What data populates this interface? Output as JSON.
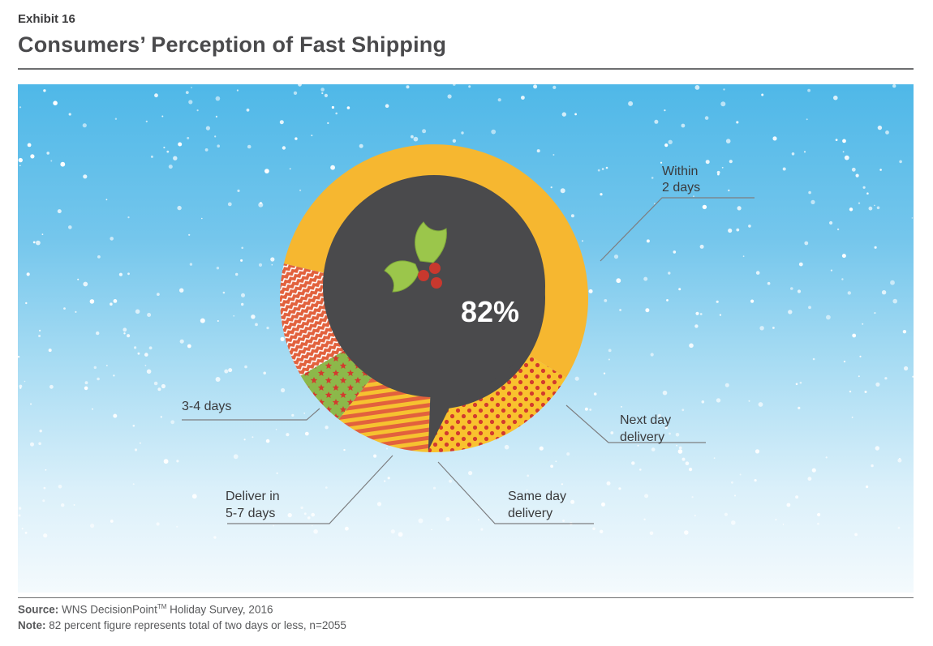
{
  "header": {
    "exhibit": "Exhibit 16",
    "title": "Consumers’ Perception of Fast Shipping"
  },
  "chart_data": {
    "type": "pie",
    "title": "Consumers’ Perception of Fast Shipping",
    "center_label": "82%",
    "categories": [
      "Within 2 days",
      "Next day delivery",
      "Same day delivery",
      "Deliver in 5-7 days",
      "3-4 days"
    ],
    "labels": [
      [
        "Within",
        "2 days"
      ],
      [
        "Next day",
        "delivery"
      ],
      [
        "Same day",
        "delivery"
      ],
      [
        "Deliver in",
        "5-7 days"
      ],
      [
        "3-4 days"
      ]
    ],
    "values": [
      55,
      17,
      10,
      6,
      12
    ],
    "colors": [
      "#f6b730",
      "#f9c22e",
      "#f08a3a",
      "#8cb84a",
      "#e2613d"
    ],
    "legend": "callout-labels"
  },
  "footer": {
    "source_label": "Source:",
    "source_text": "WNS DecisionPoint",
    "source_tm": "TM",
    "source_tail": " Holiday Survey, 2016",
    "note_label": "Note:",
    "note_text": "82 percent figure represents total of two days or less, n=2055"
  }
}
